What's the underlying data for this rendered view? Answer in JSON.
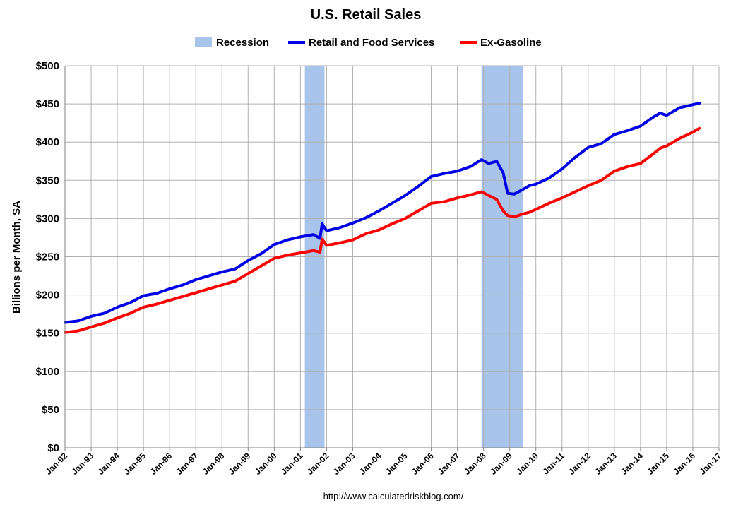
{
  "chart_data": {
    "type": "line",
    "title": "U.S. Retail Sales",
    "ylabel": "Billions per Month, SA",
    "xlabel": "",
    "ylim": [
      0,
      500
    ],
    "yticks": [
      0,
      50,
      100,
      150,
      200,
      250,
      300,
      350,
      400,
      450,
      500
    ],
    "ytick_labels": [
      "$0",
      "$50",
      "$100",
      "$150",
      "$200",
      "$250",
      "$300",
      "$350",
      "$400",
      "$450",
      "$500"
    ],
    "xlim": [
      1992,
      2017
    ],
    "xtick_labels": [
      "Jan-92",
      "Jan-93",
      "Jan-94",
      "Jan-95",
      "Jan-96",
      "Jan-97",
      "Jan-98",
      "Jan-99",
      "Jan-00",
      "Jan-01",
      "Jan-02",
      "Jan-03",
      "Jan-04",
      "Jan-05",
      "Jan-06",
      "Jan-07",
      "Jan-08",
      "Jan-09",
      "Jan-10",
      "Jan-11",
      "Jan-12",
      "Jan-13",
      "Jan-14",
      "Jan-15",
      "Jan-16",
      "Jan-17"
    ],
    "grid": true,
    "legend_position": "top",
    "recessions": [
      [
        2001.17,
        2001.92
      ],
      [
        2007.92,
        2009.5
      ]
    ],
    "recession_label": "Recession",
    "recession_color": "#a9c4eb",
    "series": [
      {
        "name": "Retail and Food Services",
        "color": "#0000e6",
        "x": [
          1992,
          1992.5,
          1993,
          1993.5,
          1994,
          1994.5,
          1995,
          1995.5,
          1996,
          1996.5,
          1997,
          1997.5,
          1998,
          1998.5,
          1999,
          1999.5,
          2000,
          2000.5,
          2001,
          2001.5,
          2001.75,
          2001.83,
          2002,
          2002.5,
          2003,
          2003.5,
          2004,
          2004.5,
          2005,
          2005.5,
          2006,
          2006.5,
          2007,
          2007.5,
          2007.92,
          2008.2,
          2008.5,
          2008.75,
          2008.92,
          2009.17,
          2009.5,
          2009.75,
          2010,
          2010.5,
          2011,
          2011.5,
          2012,
          2012.5,
          2013,
          2013.5,
          2014,
          2014.5,
          2014.75,
          2015,
          2015.5,
          2016,
          2016.25
        ],
        "values": [
          164,
          166,
          172,
          176,
          184,
          190,
          199,
          202,
          208,
          213,
          220,
          225,
          230,
          234,
          245,
          254,
          266,
          272,
          276,
          279,
          274,
          293,
          284,
          288,
          294,
          301,
          310,
          320,
          330,
          342,
          355,
          359,
          362,
          368,
          377,
          372,
          375,
          360,
          333,
          332,
          338,
          343,
          345,
          353,
          365,
          380,
          393,
          398,
          410,
          415,
          421,
          433,
          438,
          435,
          445,
          449,
          451
        ]
      },
      {
        "name": "Ex-Gasoline",
        "color": "#ff0000",
        "x": [
          1992,
          1992.5,
          1993,
          1993.5,
          1994,
          1994.5,
          1995,
          1995.5,
          1996,
          1996.5,
          1997,
          1997.5,
          1998,
          1998.5,
          1999,
          1999.5,
          2000,
          2000.5,
          2001,
          2001.5,
          2001.75,
          2001.83,
          2002,
          2002.5,
          2003,
          2003.5,
          2004,
          2004.5,
          2005,
          2005.5,
          2006,
          2006.5,
          2007,
          2007.5,
          2007.92,
          2008.2,
          2008.5,
          2008.75,
          2008.92,
          2009.17,
          2009.5,
          2009.75,
          2010,
          2010.5,
          2011,
          2011.5,
          2012,
          2012.5,
          2013,
          2013.5,
          2014,
          2014.5,
          2014.75,
          2015,
          2015.5,
          2016,
          2016.25
        ],
        "values": [
          151,
          153,
          158,
          163,
          170,
          176,
          184,
          188,
          193,
          198,
          203,
          208,
          213,
          218,
          228,
          238,
          248,
          252,
          255,
          258,
          256,
          273,
          265,
          268,
          272,
          280,
          285,
          293,
          300,
          310,
          320,
          322,
          327,
          331,
          335,
          330,
          325,
          310,
          304,
          302,
          306,
          308,
          312,
          320,
          327,
          335,
          343,
          350,
          362,
          368,
          372,
          385,
          392,
          395,
          405,
          413,
          418
        ]
      }
    ],
    "source": "http://www.calculatedriskblog.com/"
  }
}
